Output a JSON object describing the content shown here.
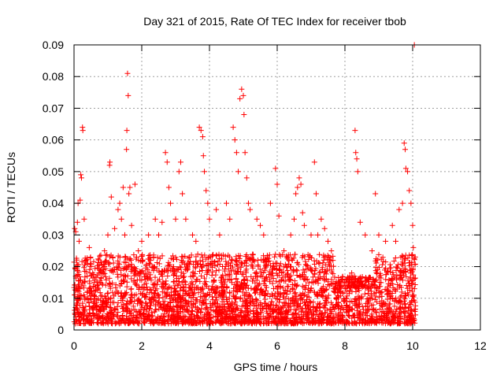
{
  "chart_data": {
    "type": "scatter",
    "title": "Day 321 of 2015, Rate Of TEC Index for receiver tbob",
    "xlabel": "GPS time / hours",
    "ylabel": "ROTI / TECUs",
    "xlim": [
      0,
      12
    ],
    "ylim": [
      0,
      0.09
    ],
    "x_ticks": [
      0,
      2,
      4,
      6,
      8,
      10,
      12
    ],
    "x_tick_labels": [
      "0",
      "2",
      "4",
      "6",
      "8",
      "10",
      "12"
    ],
    "y_ticks": [
      0,
      0.01,
      0.02,
      0.03,
      0.04,
      0.05,
      0.06,
      0.07,
      0.08,
      0.09
    ],
    "y_tick_labels": [
      "0",
      "0.01",
      "0.02",
      "0.03",
      "0.04",
      "0.05",
      "0.06",
      "0.07",
      "0.08",
      "0.09"
    ],
    "grid": true,
    "marker": "+",
    "marker_color": "#ff0000",
    "series": [
      {
        "name": "ROTI",
        "points": [
          [
            0.02,
            0.032
          ],
          [
            0.05,
            0.031
          ],
          [
            0.08,
            0.02
          ],
          [
            0.1,
            0.034
          ],
          [
            0.12,
            0.04
          ],
          [
            0.15,
            0.028
          ],
          [
            0.18,
            0.041
          ],
          [
            0.2,
            0.049
          ],
          [
            0.22,
            0.048
          ],
          [
            0.25,
            0.064
          ],
          [
            0.26,
            0.063
          ],
          [
            0.3,
            0.035
          ],
          [
            0.35,
            0.022
          ],
          [
            0.45,
            0.026
          ],
          [
            0.5,
            0.02
          ],
          [
            0.6,
            0.015
          ],
          [
            0.8,
            0.019
          ],
          [
            0.9,
            0.025
          ],
          [
            1.0,
            0.03
          ],
          [
            1.05,
            0.052
          ],
          [
            1.06,
            0.053
          ],
          [
            1.1,
            0.042
          ],
          [
            1.2,
            0.032
          ],
          [
            1.3,
            0.038
          ],
          [
            1.35,
            0.04
          ],
          [
            1.4,
            0.035
          ],
          [
            1.45,
            0.045
          ],
          [
            1.5,
            0.03
          ],
          [
            1.55,
            0.057
          ],
          [
            1.56,
            0.063
          ],
          [
            1.58,
            0.081
          ],
          [
            1.6,
            0.074
          ],
          [
            1.62,
            0.043
          ],
          [
            1.65,
            0.045
          ],
          [
            1.7,
            0.033
          ],
          [
            1.8,
            0.046
          ],
          [
            1.9,
            0.025
          ],
          [
            2.0,
            0.028
          ],
          [
            2.2,
            0.03
          ],
          [
            2.4,
            0.035
          ],
          [
            2.5,
            0.03
          ],
          [
            2.6,
            0.034
          ],
          [
            2.7,
            0.056
          ],
          [
            2.75,
            0.053
          ],
          [
            2.8,
            0.045
          ],
          [
            2.85,
            0.04
          ],
          [
            3.0,
            0.035
          ],
          [
            3.1,
            0.05
          ],
          [
            3.15,
            0.053
          ],
          [
            3.2,
            0.043
          ],
          [
            3.3,
            0.035
          ],
          [
            3.5,
            0.03
          ],
          [
            3.6,
            0.028
          ],
          [
            3.7,
            0.064
          ],
          [
            3.75,
            0.063
          ],
          [
            3.8,
            0.061
          ],
          [
            3.82,
            0.055
          ],
          [
            3.85,
            0.05
          ],
          [
            3.9,
            0.044
          ],
          [
            3.95,
            0.04
          ],
          [
            4.0,
            0.035
          ],
          [
            4.2,
            0.038
          ],
          [
            4.3,
            0.03
          ],
          [
            4.5,
            0.04
          ],
          [
            4.6,
            0.035
          ],
          [
            4.7,
            0.064
          ],
          [
            4.75,
            0.06
          ],
          [
            4.8,
            0.056
          ],
          [
            4.85,
            0.05
          ],
          [
            4.9,
            0.073
          ],
          [
            4.95,
            0.076
          ],
          [
            5.0,
            0.074
          ],
          [
            5.02,
            0.068
          ],
          [
            5.05,
            0.056
          ],
          [
            5.1,
            0.048
          ],
          [
            5.15,
            0.04
          ],
          [
            5.2,
            0.038
          ],
          [
            5.4,
            0.035
          ],
          [
            5.5,
            0.033
          ],
          [
            5.6,
            0.03
          ],
          [
            5.8,
            0.04
          ],
          [
            5.95,
            0.051
          ],
          [
            6.0,
            0.046
          ],
          [
            6.05,
            0.036
          ],
          [
            6.2,
            0.025
          ],
          [
            6.4,
            0.03
          ],
          [
            6.5,
            0.035
          ],
          [
            6.55,
            0.043
          ],
          [
            6.6,
            0.045
          ],
          [
            6.65,
            0.048
          ],
          [
            6.7,
            0.046
          ],
          [
            6.75,
            0.037
          ],
          [
            6.8,
            0.033
          ],
          [
            7.0,
            0.03
          ],
          [
            7.1,
            0.053
          ],
          [
            7.15,
            0.043
          ],
          [
            7.2,
            0.03
          ],
          [
            7.3,
            0.035
          ],
          [
            7.4,
            0.032
          ],
          [
            7.5,
            0.028
          ],
          [
            7.6,
            0.025
          ],
          [
            7.8,
            0.015
          ],
          [
            8.0,
            0.014
          ],
          [
            8.2,
            0.018
          ],
          [
            8.3,
            0.063
          ],
          [
            8.32,
            0.056
          ],
          [
            8.35,
            0.054
          ],
          [
            8.38,
            0.05
          ],
          [
            8.45,
            0.034
          ],
          [
            8.6,
            0.03
          ],
          [
            8.8,
            0.025
          ],
          [
            8.9,
            0.043
          ],
          [
            9.0,
            0.03
          ],
          [
            9.2,
            0.028
          ],
          [
            9.4,
            0.033
          ],
          [
            9.5,
            0.028
          ],
          [
            9.6,
            0.038
          ],
          [
            9.7,
            0.04
          ],
          [
            9.75,
            0.059
          ],
          [
            9.78,
            0.057
          ],
          [
            9.8,
            0.051
          ],
          [
            9.85,
            0.05
          ],
          [
            9.9,
            0.044
          ],
          [
            9.95,
            0.04
          ],
          [
            10.0,
            0.033
          ],
          [
            10.02,
            0.026
          ],
          [
            10.05,
            0.09
          ]
        ]
      }
    ],
    "noise_band": {
      "description": "dense cloud of points between 0.002 and ~0.02 spanning 0 to 10.1 hours",
      "x_range": [
        0,
        10.1
      ],
      "y_range": [
        0.002,
        0.024
      ]
    }
  }
}
